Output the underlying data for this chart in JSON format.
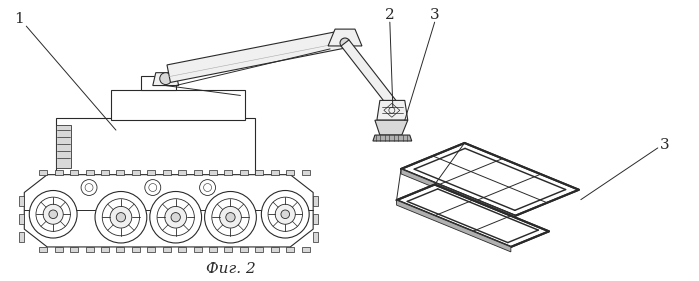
{
  "fig_width": 6.99,
  "fig_height": 2.81,
  "dpi": 100,
  "background_color": "#ffffff",
  "line_color": "#2a2a2a",
  "fig_caption": "Фиг. 2",
  "label_1": "1",
  "label_2": "2",
  "label_3": "3",
  "lw": 0.8
}
